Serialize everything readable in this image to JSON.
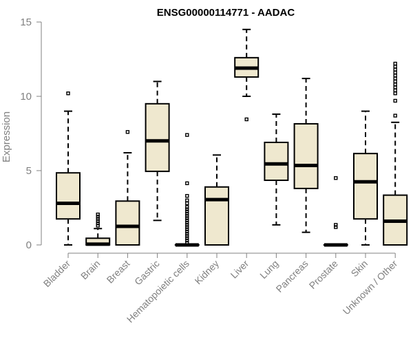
{
  "chart_data": {
    "type": "boxplot",
    "title": "ENSG00000114771 - AADAC",
    "xlabel": "",
    "ylabel": "Expression",
    "ylim": [
      0,
      15
    ],
    "yticks": [
      0,
      5,
      10,
      15
    ],
    "colors": {
      "box_fill": "#efe8cf",
      "stroke": "#000000",
      "axis": "#808080"
    },
    "categories": [
      "Bladder",
      "Brain",
      "Breast",
      "Gastric",
      "Hematopoietic cells",
      "Kidney",
      "Liver",
      "Lung",
      "Pancreas",
      "Prostate",
      "Skin",
      "Unknown / Other"
    ],
    "boxes": [
      {
        "category": "Bladder",
        "whisker_low": 0,
        "q1": 1.75,
        "median": 2.8,
        "q3": 4.85,
        "whisker_high": 9.0,
        "outliers": [
          10.2
        ]
      },
      {
        "category": "Brain",
        "whisker_low": 0,
        "q1": 0,
        "median": 0.05,
        "q3": 0.45,
        "whisker_high": 1.1,
        "outliers": [
          1.3,
          1.45,
          1.6,
          1.75,
          1.9,
          2.05
        ]
      },
      {
        "category": "Breast",
        "whisker_low": 0,
        "q1": 0,
        "median": 1.25,
        "q3": 2.95,
        "whisker_high": 6.2,
        "outliers": [
          7.6
        ]
      },
      {
        "category": "Gastric",
        "whisker_low": 1.65,
        "q1": 4.95,
        "median": 7.0,
        "q3": 9.5,
        "whisker_high": 11.0,
        "outliers": []
      },
      {
        "category": "Hematopoietic cells",
        "whisker_low": 0,
        "q1": 0,
        "median": 0,
        "q3": 0,
        "whisker_high": 0,
        "outliers": [
          0.15,
          0.3,
          0.45,
          0.6,
          0.75,
          0.9,
          1.05,
          1.2,
          1.35,
          1.5,
          1.65,
          1.8,
          1.95,
          2.1,
          2.25,
          2.4,
          2.55,
          2.8,
          3.0,
          3.3,
          4.15,
          7.4
        ]
      },
      {
        "category": "Kidney",
        "whisker_low": 0,
        "q1": 0,
        "median": 3.05,
        "q3": 3.9,
        "whisker_high": 6.05,
        "outliers": []
      },
      {
        "category": "Liver",
        "whisker_low": 10.0,
        "q1": 11.3,
        "median": 11.9,
        "q3": 12.6,
        "whisker_high": 14.5,
        "outliers": [
          8.45
        ]
      },
      {
        "category": "Lung",
        "whisker_low": 1.35,
        "q1": 4.35,
        "median": 5.45,
        "q3": 6.9,
        "whisker_high": 8.8,
        "outliers": []
      },
      {
        "category": "Pancreas",
        "whisker_low": 0.85,
        "q1": 3.8,
        "median": 5.35,
        "q3": 8.15,
        "whisker_high": 11.2,
        "outliers": []
      },
      {
        "category": "Prostate",
        "whisker_low": 0,
        "q1": 0,
        "median": 0,
        "q3": 0,
        "whisker_high": 0,
        "outliers": [
          1.2,
          1.35,
          4.5
        ]
      },
      {
        "category": "Skin",
        "whisker_low": 0,
        "q1": 1.75,
        "median": 4.25,
        "q3": 6.15,
        "whisker_high": 9.0,
        "outliers": []
      },
      {
        "category": "Unknown / Other",
        "whisker_low": 0,
        "q1": 0,
        "median": 1.6,
        "q3": 3.35,
        "whisker_high": 8.25,
        "outliers": [
          8.7,
          9.7,
          10.2,
          10.4,
          10.6,
          10.8,
          11.0,
          11.2,
          11.4,
          11.6,
          11.8,
          12.0,
          12.2
        ]
      }
    ]
  }
}
